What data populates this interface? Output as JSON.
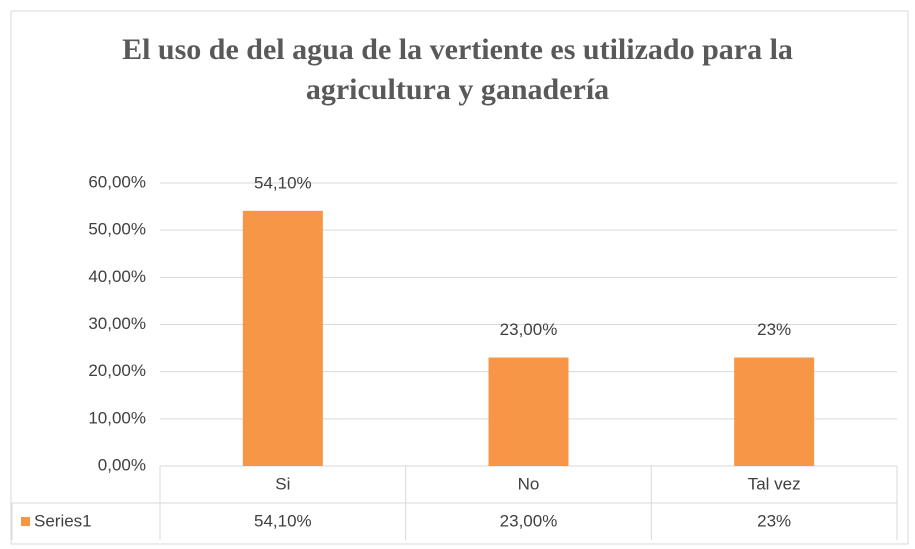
{
  "chart_data": {
    "type": "bar",
    "title": "El uso de del agua de la vertiente es utilizado para la agricultura y ganadería",
    "categories": [
      "Si",
      "No",
      "Tal vez"
    ],
    "series": [
      {
        "name": "Series1",
        "color": "#f79646",
        "values": [
          54.1,
          23,
          23
        ],
        "value_labels": [
          "54,10%",
          "23,00%",
          "23%"
        ]
      }
    ],
    "ylim": [
      0,
      60
    ],
    "yticks": [
      {
        "value": 0,
        "label": "0,00%"
      },
      {
        "value": 10,
        "label": "10,00%"
      },
      {
        "value": 20,
        "label": "20,00%"
      },
      {
        "value": 30,
        "label": "30,00%"
      },
      {
        "value": 40,
        "label": "40,00%"
      },
      {
        "value": 50,
        "label": "50,00%"
      },
      {
        "value": 60,
        "label": "60,00%"
      }
    ],
    "grid": true,
    "data_table": true
  }
}
